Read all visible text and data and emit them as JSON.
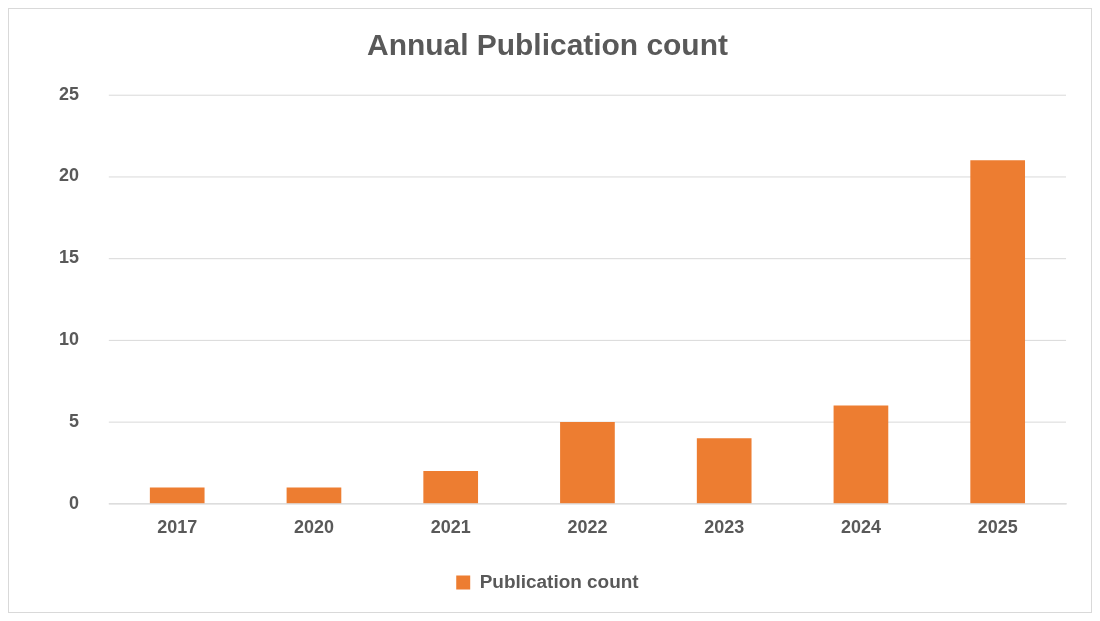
{
  "chart_data": {
    "type": "bar",
    "title": "Annual Publication count",
    "categories": [
      "2017",
      "2020",
      "2021",
      "2022",
      "2023",
      "2024",
      "2025"
    ],
    "series": [
      {
        "name": "Publication count",
        "color": "#ed7d31",
        "values": [
          1,
          1,
          2,
          5,
          4,
          6,
          21
        ]
      }
    ],
    "ylim": [
      0,
      25
    ],
    "yticks": [
      0,
      5,
      10,
      15,
      20,
      25
    ],
    "grid": "y",
    "legend": "bottom"
  }
}
